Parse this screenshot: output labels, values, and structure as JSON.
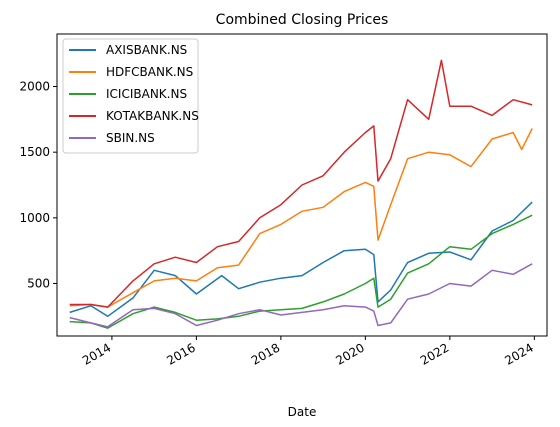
{
  "chart_data": {
    "type": "line",
    "title": "Combined Closing Prices",
    "xlabel": "Date",
    "ylabel": "",
    "x_domain": [
      2012.7,
      2024.3
    ],
    "ylim": [
      100,
      2400
    ],
    "x_ticks": [
      2014,
      2016,
      2018,
      2020,
      2022,
      2024
    ],
    "x_tick_labels": [
      "2014",
      "2016",
      "2018",
      "2020",
      "2022",
      "2024"
    ],
    "y_ticks": [
      500,
      1000,
      1500,
      2000
    ],
    "y_tick_labels": [
      "500",
      "1000",
      "1500",
      "2000"
    ],
    "grid": false,
    "legend_position": "top-left",
    "series": [
      {
        "name": "AXISBANK.NS",
        "color": "#1f77b4",
        "x": [
          2013.0,
          2013.5,
          2013.9,
          2014.5,
          2015.0,
          2015.5,
          2016.0,
          2016.6,
          2017.0,
          2017.5,
          2018.0,
          2018.5,
          2019.0,
          2019.5,
          2020.0,
          2020.2,
          2020.3,
          2020.6,
          2021.0,
          2021.5,
          2022.0,
          2022.5,
          2023.0,
          2023.5,
          2023.95
        ],
        "y": [
          280,
          330,
          250,
          390,
          600,
          560,
          420,
          560,
          460,
          510,
          540,
          560,
          660,
          750,
          760,
          720,
          360,
          450,
          660,
          730,
          740,
          680,
          900,
          980,
          1120
        ]
      },
      {
        "name": "HDFCBANK.NS",
        "color": "#ff7f0e",
        "x": [
          2013.0,
          2013.5,
          2013.9,
          2014.5,
          2015.0,
          2015.5,
          2016.0,
          2016.5,
          2017.0,
          2017.5,
          2018.0,
          2018.5,
          2019.0,
          2019.5,
          2020.0,
          2020.2,
          2020.3,
          2020.6,
          2021.0,
          2021.5,
          2022.0,
          2022.5,
          2023.0,
          2023.5,
          2023.7,
          2023.95
        ],
        "y": [
          330,
          340,
          320,
          430,
          520,
          540,
          520,
          620,
          640,
          880,
          950,
          1050,
          1080,
          1200,
          1270,
          1240,
          830,
          1100,
          1450,
          1500,
          1480,
          1390,
          1600,
          1650,
          1520,
          1680
        ]
      },
      {
        "name": "ICICIBANK.NS",
        "color": "#2ca02c",
        "x": [
          2013.0,
          2013.5,
          2013.9,
          2014.5,
          2015.0,
          2015.5,
          2016.0,
          2016.5,
          2017.0,
          2017.5,
          2018.0,
          2018.5,
          2019.0,
          2019.5,
          2020.0,
          2020.2,
          2020.3,
          2020.6,
          2021.0,
          2021.5,
          2022.0,
          2022.5,
          2023.0,
          2023.5,
          2023.95
        ],
        "y": [
          210,
          200,
          160,
          270,
          320,
          280,
          220,
          230,
          250,
          290,
          300,
          310,
          360,
          420,
          500,
          540,
          320,
          380,
          580,
          650,
          780,
          760,
          880,
          950,
          1020
        ]
      },
      {
        "name": "KOTAKBANK.NS",
        "color": "#d62728",
        "x": [
          2013.0,
          2013.5,
          2013.9,
          2014.5,
          2015.0,
          2015.5,
          2016.0,
          2016.5,
          2017.0,
          2017.5,
          2018.0,
          2018.5,
          2019.0,
          2019.5,
          2020.0,
          2020.2,
          2020.3,
          2020.6,
          2021.0,
          2021.5,
          2021.8,
          2022.0,
          2022.5,
          2023.0,
          2023.5,
          2023.95
        ],
        "y": [
          340,
          340,
          320,
          520,
          650,
          700,
          660,
          780,
          820,
          1000,
          1100,
          1250,
          1320,
          1500,
          1650,
          1700,
          1280,
          1450,
          1900,
          1750,
          2200,
          1850,
          1850,
          1780,
          1900,
          1860
        ]
      },
      {
        "name": "SBIN.NS",
        "color": "#9467bd",
        "x": [
          2013.0,
          2013.5,
          2013.9,
          2014.5,
          2015.0,
          2015.5,
          2016.0,
          2016.5,
          2017.0,
          2017.5,
          2018.0,
          2018.5,
          2019.0,
          2019.5,
          2020.0,
          2020.2,
          2020.3,
          2020.6,
          2021.0,
          2021.5,
          2022.0,
          2022.5,
          2023.0,
          2023.5,
          2023.95
        ],
        "y": [
          240,
          200,
          170,
          300,
          310,
          270,
          180,
          220,
          270,
          300,
          260,
          280,
          300,
          330,
          320,
          290,
          180,
          200,
          380,
          420,
          500,
          480,
          600,
          570,
          650
        ]
      }
    ]
  }
}
